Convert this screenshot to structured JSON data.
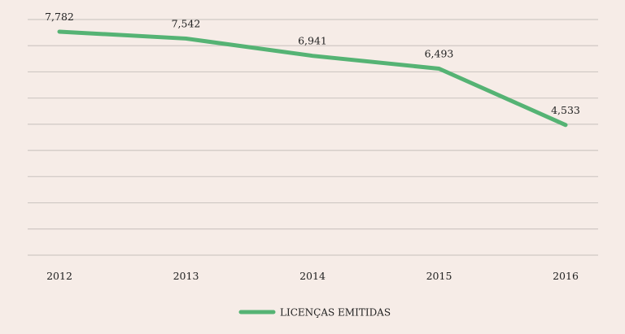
{
  "chart_data": {
    "type": "line",
    "x": [
      "2012",
      "2013",
      "2014",
      "2015",
      "2016"
    ],
    "series": [
      {
        "name": "LICENÇAS EMITIDAS",
        "values": [
          7782,
          7542,
          6941,
          6493,
          4533
        ],
        "labels": [
          "7,782",
          "7,542",
          "6,941",
          "6,493",
          "4,533"
        ],
        "color": "#55b374"
      }
    ],
    "ylim": [
      0,
      8000
    ],
    "grid": true,
    "legend_position": "bottom-center",
    "background": "#f6ece7"
  }
}
